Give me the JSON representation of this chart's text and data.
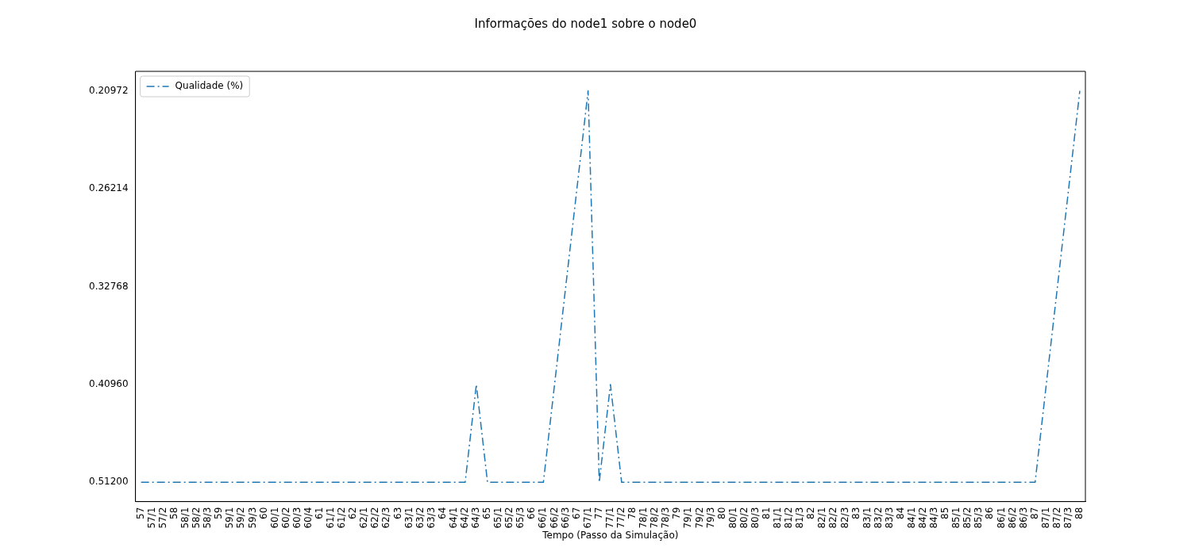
{
  "chart_data": {
    "type": "line",
    "title": "Informações do node1 sobre o node0",
    "xlabel": "Tempo (Passo da Simulação)",
    "categories": [
      "57",
      "57/1",
      "57/2",
      "58",
      "58/1",
      "58/2",
      "58/3",
      "59",
      "59/1",
      "59/2",
      "59/3",
      "60",
      "60/1",
      "60/2",
      "60/3",
      "60/4",
      "61",
      "61/1",
      "61/2",
      "62",
      "62/1",
      "62/2",
      "62/3",
      "63",
      "63/1",
      "63/2",
      "63/3",
      "64",
      "64/1",
      "64/2",
      "64/3",
      "65",
      "65/1",
      "65/2",
      "65/3",
      "66",
      "66/1",
      "66/2",
      "66/3",
      "67",
      "67/1",
      "77",
      "77/1",
      "77/2",
      "78",
      "78/1",
      "78/2",
      "78/3",
      "79",
      "79/1",
      "79/2",
      "79/3",
      "80",
      "80/1",
      "80/2",
      "80/3",
      "81",
      "81/1",
      "81/2",
      "81/3",
      "82",
      "82/1",
      "82/2",
      "82/3",
      "83",
      "83/1",
      "83/2",
      "83/3",
      "84",
      "84/1",
      "84/2",
      "84/3",
      "85",
      "85/1",
      "85/2",
      "85/3",
      "86",
      "86/1",
      "86/2",
      "86/3",
      "87",
      "87/1",
      "87/2",
      "87/3",
      "88"
    ],
    "series": [
      {
        "name": "Qualidade (%)",
        "color": "#1f77b4",
        "values": [
          0.512,
          0.512,
          0.512,
          0.512,
          0.512,
          0.512,
          0.512,
          0.512,
          0.512,
          0.512,
          0.512,
          0.512,
          0.512,
          0.512,
          0.512,
          0.512,
          0.512,
          0.512,
          0.512,
          0.512,
          0.512,
          0.512,
          0.512,
          0.512,
          0.512,
          0.512,
          0.512,
          0.512,
          0.512,
          0.512,
          0.4096,
          0.512,
          0.512,
          0.512,
          0.512,
          0.512,
          0.512,
          0.4096,
          0.32768,
          0.262144,
          0.2097152,
          0.512,
          0.4096,
          0.512,
          0.512,
          0.512,
          0.512,
          0.512,
          0.512,
          0.512,
          0.512,
          0.512,
          0.512,
          0.512,
          0.512,
          0.512,
          0.512,
          0.512,
          0.512,
          0.512,
          0.512,
          0.512,
          0.512,
          0.512,
          0.512,
          0.512,
          0.512,
          0.512,
          0.512,
          0.512,
          0.512,
          0.512,
          0.512,
          0.512,
          0.512,
          0.512,
          0.512,
          0.512,
          0.512,
          0.512,
          0.512,
          0.4096,
          0.32768,
          0.262144,
          0.2097152
        ]
      }
    ],
    "log": "y",
    "ylim": [
      0.535,
      0.2006
    ],
    "yticks": [
      {
        "value": 0.512,
        "label": "0.51200"
      },
      {
        "value": 0.4096,
        "label": "0.40960"
      },
      {
        "value": 0.32768,
        "label": "0.32768"
      },
      {
        "value": 0.262144,
        "label": "0.26214"
      },
      {
        "value": 0.2097152,
        "label": "0.20972"
      }
    ],
    "grid": false,
    "legend": "top left",
    "marker": "none",
    "line_style": "dashdot"
  }
}
